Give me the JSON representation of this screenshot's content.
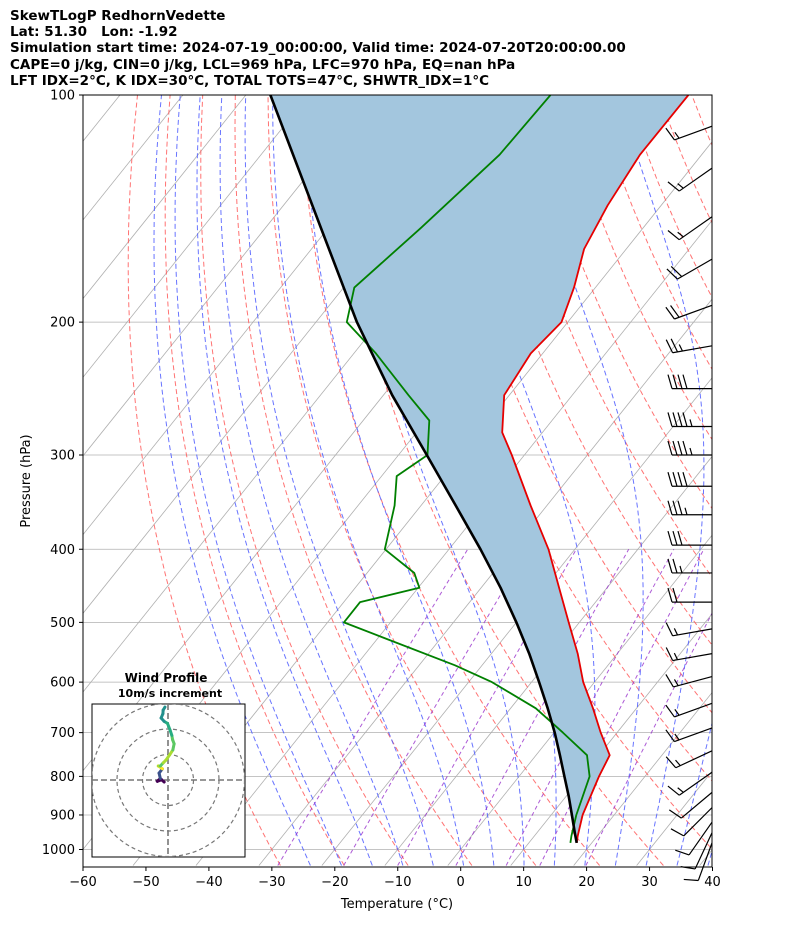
{
  "header": {
    "line1": "SkewTLogP RedhornVedette",
    "line2": "Lat: 51.30   Lon: -1.92",
    "line3": "Simulation start time: 2024-07-19_00:00:00, Valid time: 2024-07-20T20:00:00.00",
    "line4": "CAPE=0 j/kg, CIN=0 j/kg, LCL=969 hPa, LFC=970 hPa, EQ=nan hPa",
    "line5": "LFT IDX=2°C, K IDX=30°C, TOTAL TOTS=47°C, SHWTR_IDX=1°C"
  },
  "colors": {
    "temperature": "#e60000",
    "dewpoint": "#008000",
    "parcel": "#000000",
    "cape_fill": "#a3c6de",
    "dry_adiabat": "#ff5a5a",
    "moist_adiabat": "#4d5cff",
    "mixing_ratio": "#9932cc",
    "isotherm": "#b0b0b0"
  },
  "chart_data": [
    {
      "type": "line",
      "title": "Skew-T Log-P",
      "xlabel": "Temperature (°C)",
      "ylabel": "Pressure (hPa)",
      "xlim": [
        -60,
        40
      ],
      "ylim": [
        1050,
        100
      ],
      "yscale": "log",
      "xticks": [
        -60,
        -50,
        -40,
        -30,
        -20,
        -10,
        0,
        10,
        20,
        30,
        40
      ],
      "xtick_labels": [
        "−60",
        "−50",
        "−40",
        "−30",
        "−20",
        "−10",
        "0",
        "10",
        "20",
        "30",
        "40"
      ],
      "yticks": [
        1000,
        900,
        800,
        700,
        600,
        500,
        400,
        300,
        200,
        100
      ],
      "series": [
        {
          "name": "Temperature",
          "pressure": [
            980,
            960,
            900,
            800,
            750,
            700,
            650,
            600,
            550,
            500,
            450,
            400,
            350,
            300,
            280,
            250,
            220,
            200,
            180,
            160,
            140,
            120,
            100
          ],
          "values": [
            17.6,
            16.9,
            15.0,
            12.7,
            11.7,
            7.4,
            3.1,
            -1.8,
            -6.3,
            -11.7,
            -17.6,
            -24.2,
            -32.6,
            -42.0,
            -46.4,
            -50.8,
            -51.9,
            -51.0,
            -53.4,
            -56.7,
            -58.5,
            -59.8,
            -59.7
          ]
        },
        {
          "name": "Dewpoint",
          "pressure": [
            980,
            960,
            900,
            800,
            750,
            700,
            650,
            600,
            570,
            500,
            470,
            450,
            430,
            400,
            350,
            320,
            300,
            270,
            250,
            220,
            200,
            180,
            150,
            120,
            100
          ],
          "values": [
            16.6,
            15.9,
            14.0,
            11.2,
            8.1,
            1.4,
            -6.0,
            -16.3,
            -24.3,
            -47.4,
            -47.4,
            -39.8,
            -42.5,
            -50.2,
            -54.2,
            -57.6,
            -55.4,
            -59.5,
            -66.0,
            -76.5,
            -85.1,
            -88.3,
            -85.3,
            -82.1,
            -81.6
          ]
        },
        {
          "name": "Parcel",
          "pressure": [
            980,
            950,
            900,
            850,
            800,
            750,
            700,
            650,
            600,
            550,
            500,
            450,
            400,
            350,
            300,
            250,
            200,
            150,
            100
          ],
          "values": [
            17.6,
            16.0,
            13.3,
            10.4,
            7.2,
            3.8,
            0.1,
            -4.1,
            -8.8,
            -14.0,
            -20.0,
            -26.9,
            -35.0,
            -44.5,
            -55.5,
            -68.6,
            -83.5,
            -101.2,
            -126.1
          ]
        }
      ],
      "wind_barbs": [
        {
          "pressure": 980,
          "speed_kt": 10,
          "direction": 200
        },
        {
          "pressure": 950,
          "speed_kt": 10,
          "direction": 205
        },
        {
          "pressure": 920,
          "speed_kt": 10,
          "direction": 215
        },
        {
          "pressure": 880,
          "speed_kt": 10,
          "direction": 225
        },
        {
          "pressure": 840,
          "speed_kt": 10,
          "direction": 230
        },
        {
          "pressure": 790,
          "speed_kt": 15,
          "direction": 235
        },
        {
          "pressure": 740,
          "speed_kt": 15,
          "direction": 245
        },
        {
          "pressure": 690,
          "speed_kt": 15,
          "direction": 250
        },
        {
          "pressure": 640,
          "speed_kt": 15,
          "direction": 250
        },
        {
          "pressure": 590,
          "speed_kt": 15,
          "direction": 255
        },
        {
          "pressure": 550,
          "speed_kt": 15,
          "direction": 260
        },
        {
          "pressure": 510,
          "speed_kt": 15,
          "direction": 260
        },
        {
          "pressure": 470,
          "speed_kt": 20,
          "direction": 270
        },
        {
          "pressure": 430,
          "speed_kt": 25,
          "direction": 270
        },
        {
          "pressure": 395,
          "speed_kt": 30,
          "direction": 270
        },
        {
          "pressure": 360,
          "speed_kt": 35,
          "direction": 270
        },
        {
          "pressure": 330,
          "speed_kt": 40,
          "direction": 270
        },
        {
          "pressure": 300,
          "speed_kt": 45,
          "direction": 270
        },
        {
          "pressure": 275,
          "speed_kt": 45,
          "direction": 270
        },
        {
          "pressure": 245,
          "speed_kt": 40,
          "direction": 270
        },
        {
          "pressure": 215,
          "speed_kt": 25,
          "direction": 260
        },
        {
          "pressure": 190,
          "speed_kt": 20,
          "direction": 250
        },
        {
          "pressure": 165,
          "speed_kt": 20,
          "direction": 240
        },
        {
          "pressure": 145,
          "speed_kt": 15,
          "direction": 235
        },
        {
          "pressure": 125,
          "speed_kt": 15,
          "direction": 235
        },
        {
          "pressure": 110,
          "speed_kt": 15,
          "direction": 250
        }
      ]
    },
    {
      "type": "line",
      "title": "Wind Profile",
      "subtitle": "10m/s increment",
      "rings_ms": [
        10,
        20,
        30
      ],
      "hodograph": {
        "u": [
          -1.5,
          -2.5,
          -4.2,
          -3.0,
          -3.5,
          -2.2,
          -3.8,
          -3.0,
          -1.8,
          -0.8,
          0.6,
          1.9,
          2.4,
          1.8,
          1.5,
          0.8,
          -0.2,
          -1.5,
          -2.7,
          -2.0,
          -1.9,
          -1.2
        ],
        "v": [
          -0.8,
          0.1,
          -0.5,
          0.6,
          2.7,
          4.4,
          5.5,
          5.5,
          6.8,
          7.8,
          9.8,
          11.8,
          14.2,
          15.8,
          17.5,
          19.6,
          22.2,
          23.0,
          24.3,
          26.0,
          27.4,
          28.6
        ]
      }
    }
  ]
}
